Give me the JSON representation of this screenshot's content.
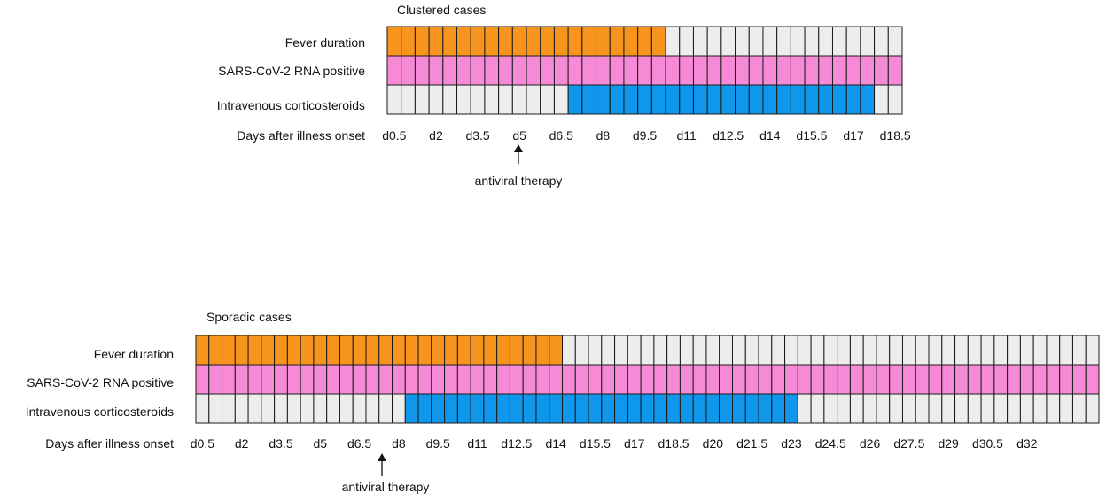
{
  "chart_data": [
    {
      "type": "table",
      "title": "Clustered cases",
      "xlabel": "Days after illness onset",
      "step_days": 0.5,
      "tick_labels": [
        "d0.5",
        "d2",
        "d3.5",
        "d5",
        "d6.5",
        "d8",
        "d9.5",
        "d11",
        "d12.5",
        "d14",
        "d15.5",
        "d17",
        "d18.5"
      ],
      "rows": [
        {
          "label": "Fever duration",
          "colored_from": 1,
          "colored_to": 20
        },
        {
          "label": "SARS-CoV-2 RNA positive",
          "colored_from": 1,
          "colored_to": 37
        },
        {
          "label": "Intravenous corticosteroids",
          "colored_from": 14,
          "colored_to": 35
        }
      ],
      "cells": 37,
      "annotation": {
        "text": "antiviral therapy",
        "day_label": "d5"
      }
    },
    {
      "type": "table",
      "title": "Sporadic cases",
      "xlabel": "Days after illness onset",
      "step_days": 0.5,
      "tick_labels": [
        "d0.5",
        "d2",
        "d3.5",
        "d5",
        "d6.5",
        "d8",
        "d9.5",
        "d11",
        "d12.5",
        "d14",
        "d15.5",
        "d17",
        "d18.5",
        "d20",
        "d21.5",
        "d23",
        "d24.5",
        "d26",
        "d27.5",
        "d29",
        "d30.5",
        "d32"
      ],
      "rows": [
        {
          "label": "Fever duration",
          "colored_from": 1,
          "colored_to": 28
        },
        {
          "label": "SARS-CoV-2 RNA positive",
          "colored_from": 1,
          "colored_to": 69
        },
        {
          "label": "Intravenous corticosteroids",
          "colored_from": 17,
          "colored_to": 46
        }
      ],
      "cells": 69,
      "annotation": {
        "text": "antiviral therapy",
        "day_label": "d6.5"
      }
    }
  ],
  "colors": {
    "fever": "#F7941D",
    "rna": "#F78AD6",
    "steroid": "#0F97EC",
    "empty": "#EDEDED",
    "border": "#1a1a1a"
  }
}
